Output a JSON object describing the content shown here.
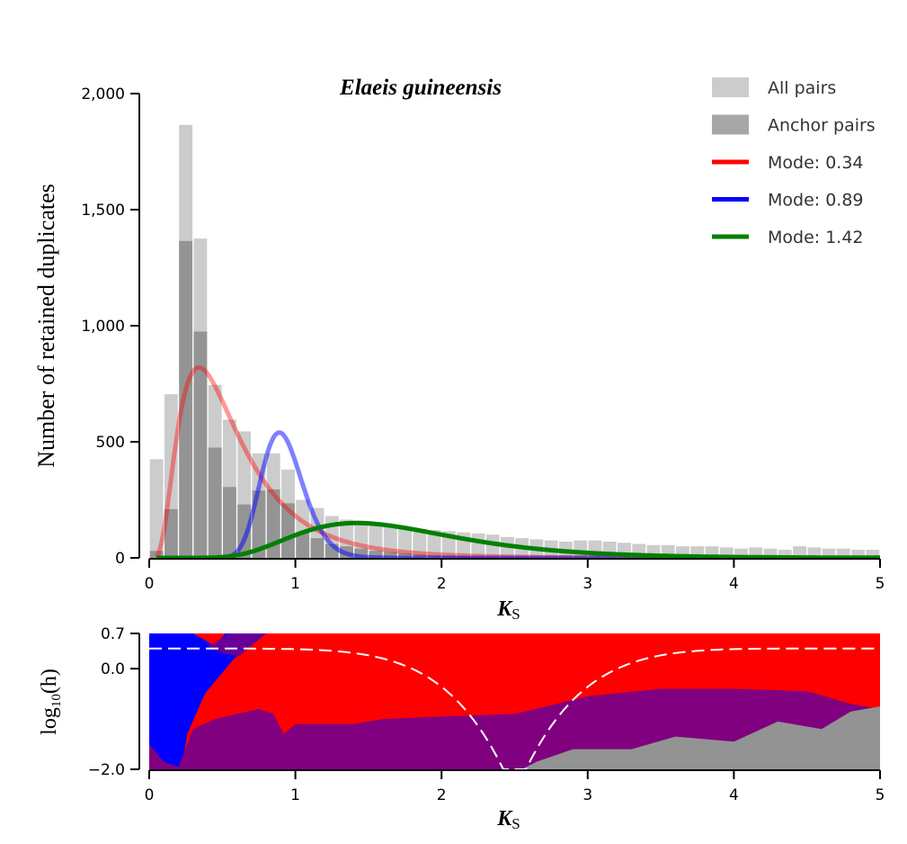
{
  "chart_data": [
    {
      "type": "bar",
      "title": "Elaeis guineensis",
      "title_color": "#8e4f9a",
      "xlabel": "K",
      "xlabel_sub": "S",
      "ylabel": "Number of retained duplicates",
      "xlim": [
        0,
        5
      ],
      "ylim": [
        0,
        2000
      ],
      "xticks": [
        "0",
        "1",
        "2",
        "3",
        "4",
        "5"
      ],
      "yticks": [
        "0",
        "500",
        "1,000",
        "1,500",
        "2,000"
      ],
      "bin_width": 0.1,
      "legend_position": "top-right",
      "series": [
        {
          "name": "All pairs",
          "type": "bar",
          "color": "#cccccc",
          "x": [
            0.05,
            0.15,
            0.25,
            0.35,
            0.45,
            0.55,
            0.65,
            0.75,
            0.85,
            0.95,
            1.05,
            1.15,
            1.25,
            1.35,
            1.45,
            1.55,
            1.65,
            1.75,
            1.85,
            1.95,
            2.05,
            2.15,
            2.25,
            2.35,
            2.45,
            2.55,
            2.65,
            2.75,
            2.85,
            2.95,
            3.05,
            3.15,
            3.25,
            3.35,
            3.45,
            3.55,
            3.65,
            3.75,
            3.85,
            3.95,
            4.05,
            4.15,
            4.25,
            4.35,
            4.45,
            4.55,
            4.65,
            4.75,
            4.85,
            4.95
          ],
          "values": [
            425,
            705,
            1865,
            1375,
            745,
            595,
            545,
            450,
            450,
            380,
            250,
            215,
            180,
            165,
            160,
            145,
            140,
            130,
            125,
            120,
            115,
            110,
            105,
            100,
            90,
            85,
            80,
            75,
            70,
            75,
            75,
            70,
            65,
            60,
            55,
            55,
            50,
            50,
            50,
            45,
            40,
            45,
            40,
            35,
            50,
            45,
            40,
            40,
            35,
            35
          ]
        },
        {
          "name": "Anchor pairs",
          "type": "bar",
          "color": "#8a8a8a",
          "x": [
            0.05,
            0.15,
            0.25,
            0.35,
            0.45,
            0.55,
            0.65,
            0.75,
            0.85,
            0.95,
            1.05,
            1.15,
            1.25,
            1.35,
            1.45,
            1.55,
            1.65,
            1.75,
            1.85,
            1.95,
            2.05,
            2.15,
            2.25,
            2.35,
            2.45,
            2.55,
            2.65,
            2.75,
            2.85,
            2.95,
            3.05,
            3.15,
            3.25,
            3.35,
            3.45,
            3.55,
            3.65,
            3.75,
            3.85,
            3.95,
            4.05,
            4.15,
            4.25,
            4.35,
            4.45,
            4.55,
            4.65,
            4.75,
            4.85,
            4.95
          ],
          "values": [
            30,
            210,
            1365,
            975,
            475,
            305,
            230,
            290,
            295,
            235,
            110,
            85,
            60,
            50,
            40,
            30,
            25,
            20,
            15,
            12,
            10,
            8,
            6,
            5,
            4,
            3,
            3,
            2,
            2,
            2,
            2,
            1,
            1,
            1,
            1,
            1,
            1,
            1,
            1,
            1,
            0,
            0,
            0,
            0,
            0,
            0,
            0,
            0,
            0,
            0
          ]
        },
        {
          "name": "Mode: 0.34",
          "type": "line",
          "color": "#ff0000",
          "mode": 0.34,
          "peak": 820,
          "sigma": 0.62,
          "start": 0.05,
          "opacity": 0.4
        },
        {
          "name": "Mode: 0.89",
          "type": "line",
          "color": "#0000ff",
          "mode": 0.89,
          "peak": 540,
          "sigma": 0.16,
          "opacity": 0.5
        },
        {
          "name": "Mode: 1.42",
          "type": "line",
          "color": "#008000",
          "mode": 1.42,
          "peak": 150,
          "sigma": 0.38,
          "opacity": 1.0
        }
      ]
    },
    {
      "type": "heatmap",
      "xlabel": "K",
      "xlabel_sub": "S",
      "ylabel": "log",
      "ylabel_sub": "10",
      "ylabel_suffix": "(h)",
      "xlim": [
        0,
        5
      ],
      "ylim": [
        -2.0,
        0.7
      ],
      "xticks": [
        "0",
        "1",
        "2",
        "3",
        "4",
        "5"
      ],
      "yticks": [
        "−2.0",
        "0.0",
        "0.7"
      ],
      "region_colors": {
        "blue": "#0000ff",
        "red": "#ff0000",
        "purple": "#800080",
        "gray": "#939393"
      },
      "blue_red_boundary": [
        [
          0,
          0.7
        ],
        [
          0.3,
          0.7
        ],
        [
          0.45,
          0.45
        ],
        [
          0.52,
          0.7
        ],
        [
          0.8,
          0.7
        ],
        [
          0.58,
          0.2
        ],
        [
          0.38,
          -0.5
        ],
        [
          0.26,
          -1.3
        ],
        [
          0.22,
          -2.0
        ],
        [
          0,
          -2.0
        ]
      ],
      "purple_top": [
        [
          0,
          -1.5
        ],
        [
          0.1,
          -1.85
        ],
        [
          0.2,
          -1.95
        ],
        [
          0.3,
          -1.2
        ],
        [
          0.45,
          -1.0
        ],
        [
          0.6,
          -0.9
        ],
        [
          0.75,
          -0.8
        ],
        [
          0.85,
          -0.9
        ],
        [
          0.92,
          -1.3
        ],
        [
          1.0,
          -1.1
        ],
        [
          1.2,
          -1.1
        ],
        [
          1.4,
          -1.1
        ],
        [
          1.6,
          -1.0
        ],
        [
          2.0,
          -0.95
        ],
        [
          2.5,
          -0.9
        ],
        [
          3.0,
          -0.55
        ],
        [
          3.5,
          -0.4
        ],
        [
          4.0,
          -0.4
        ],
        [
          4.5,
          -0.45
        ],
        [
          4.8,
          -0.7
        ],
        [
          5.0,
          -0.8
        ]
      ],
      "gray_top": [
        [
          0,
          -2.0
        ],
        [
          2.55,
          -2.0
        ],
        [
          2.65,
          -1.85
        ],
        [
          2.9,
          -1.6
        ],
        [
          3.3,
          -1.6
        ],
        [
          3.6,
          -1.35
        ],
        [
          4.0,
          -1.45
        ],
        [
          4.3,
          -1.05
        ],
        [
          4.6,
          -1.2
        ],
        [
          4.8,
          -0.85
        ],
        [
          5.0,
          -0.75
        ]
      ],
      "dashed_curve": {
        "center": 2.5,
        "value_at_edges": 0.4,
        "min": -2.0,
        "color": "#ffffff"
      }
    }
  ]
}
